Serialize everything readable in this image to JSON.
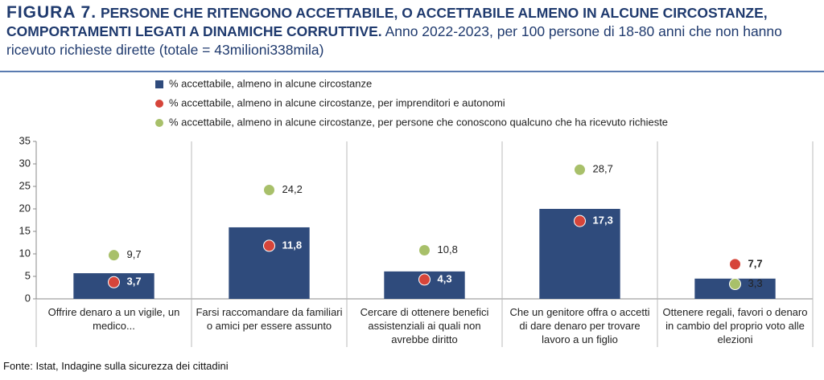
{
  "chart_data": {
    "type": "bar",
    "figure_label": "FIGURA 7.",
    "title": "PERSONE CHE RITENGONO ACCETTABILE, O ACCETTABILE ALMENO IN ALCUNE CIRCOSTANZE, COMPORTAMENTI LEGATI A DINAMICHE CORRUTTIVE.",
    "subtitle": "Anno 2022-2023, per 100 persone di 18-80 anni che non hanno ricevuto richieste dirette",
    "subtitle_total": "(totale = 43milioni338mila)",
    "source": "Fonte: Istat, Indagine sulla sicurezza dei cittadini",
    "categories": [
      "Offrire denaro a un vigile, un medico...",
      "Farsi raccomandare da familiari o amici  per essere assunto",
      "Cercare di ottenere benefici assistenziali ai quali non avrebbe diritto",
      "Che un genitore offra o accetti di dare denaro per trovare lavoro a un figlio",
      "Ottenere regali, favori o denaro in cambio del proprio voto alle elezioni"
    ],
    "series": [
      {
        "name": "% accettabile, almeno in alcune circostanze",
        "type": "bar",
        "color": "#2f4b7c",
        "values": [
          5.7,
          15.9,
          6.1,
          20.0,
          4.5
        ]
      },
      {
        "name": "% accettabile, almeno in alcune circostanze, per imprenditori e autonomi",
        "type": "scatter",
        "color": "#d6453a",
        "values": [
          3.7,
          11.8,
          4.3,
          17.3,
          7.7
        ],
        "value_labels": [
          "3,7",
          "11,8",
          "4,3",
          "17,3",
          "7,7"
        ]
      },
      {
        "name": "% accettabile, almeno in alcune circostanze, per persone che conoscono qualcuno che ha ricevuto richieste",
        "type": "scatter",
        "color": "#a8c06a",
        "values": [
          9.7,
          24.2,
          10.8,
          28.7,
          3.3
        ],
        "value_labels": [
          "9,7",
          "24,2",
          "10,8",
          "28,7",
          "3,3"
        ]
      }
    ],
    "ylim": [
      0,
      35
    ],
    "yticks": [
      0,
      5,
      10,
      15,
      20,
      25,
      30,
      35
    ]
  }
}
